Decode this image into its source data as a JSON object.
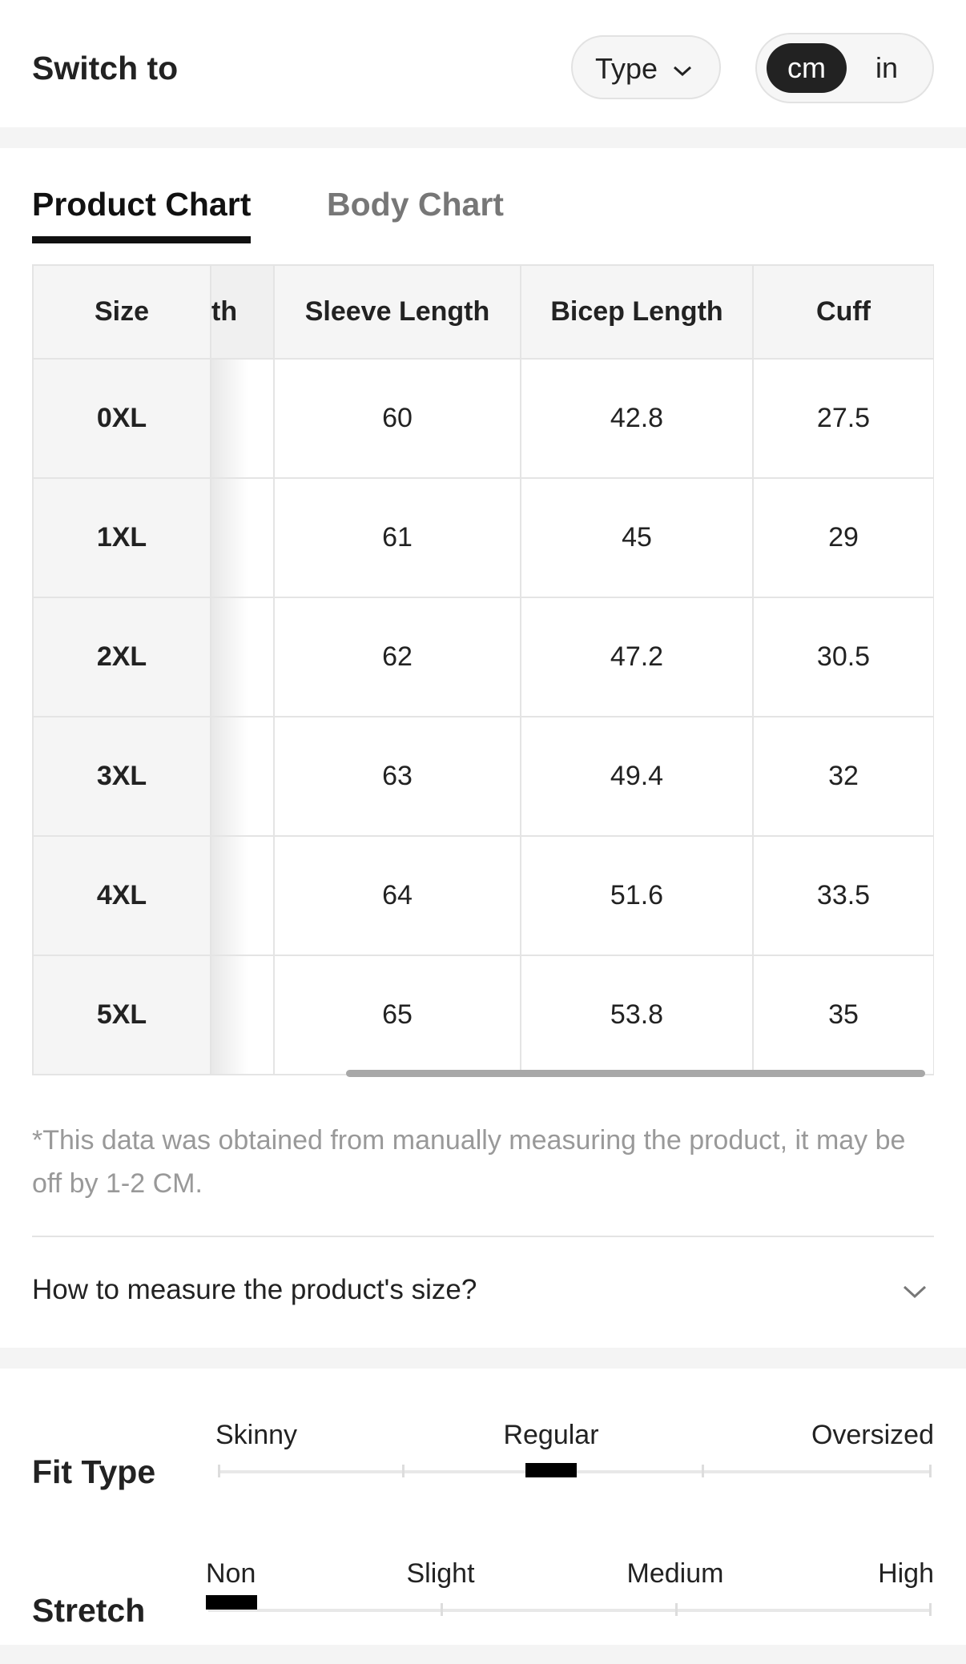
{
  "header": {
    "title": "Switch to",
    "type_button": "Type",
    "units": [
      "cm",
      "in"
    ],
    "selected_unit": 0
  },
  "tabs": {
    "items": [
      "Product Chart",
      "Body Chart"
    ],
    "selected": 0
  },
  "table": {
    "columns": [
      "Size",
      "th",
      "Sleeve Length",
      "Bicep Length",
      "Cuff"
    ],
    "rows": [
      [
        "0XL",
        "",
        "60",
        "42.8",
        "27.5"
      ],
      [
        "1XL",
        "",
        "61",
        "45",
        "29"
      ],
      [
        "2XL",
        "",
        "62",
        "47.2",
        "30.5"
      ],
      [
        "3XL",
        "",
        "63",
        "49.4",
        "32"
      ],
      [
        "4XL",
        "",
        "64",
        "51.6",
        "33.5"
      ],
      [
        "5XL",
        "",
        "65",
        "53.8",
        "35"
      ]
    ]
  },
  "note": "*This data was obtained from manually measuring the product, it may be off by 1-2 CM.",
  "accordion": "How to measure the product's size?",
  "fit": {
    "label": "Fit Type",
    "options": [
      "Skinny",
      "Regular",
      "Oversized"
    ],
    "selected": 1
  },
  "stretch": {
    "label": "Stretch",
    "options": [
      "Non",
      "Slight",
      "Medium",
      "High"
    ],
    "selected": 0
  }
}
